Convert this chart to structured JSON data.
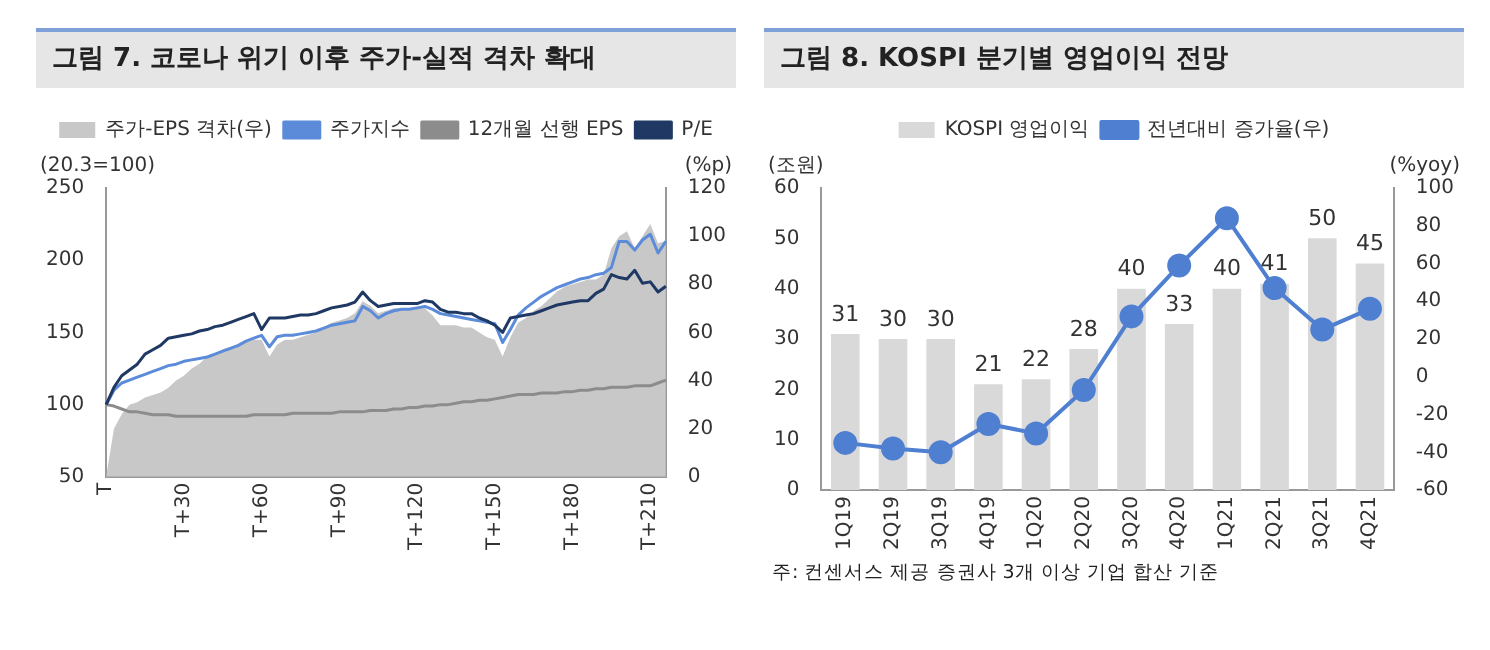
{
  "chart_data": [
    {
      "type": "line",
      "title": "그림 7. 코로나 위기 이후 주가-실적 격차 확대",
      "ylabel": "(20.3=100)",
      "y2label": "(%p)",
      "categories": [
        "T",
        null,
        null,
        null,
        null,
        null,
        null,
        null,
        null,
        null,
        "T+30",
        null,
        null,
        null,
        null,
        null,
        null,
        null,
        null,
        null,
        "T+60",
        null,
        null,
        null,
        null,
        null,
        null,
        null,
        null,
        null,
        "T+90",
        null,
        null,
        null,
        null,
        null,
        null,
        null,
        null,
        null,
        "T+120",
        null,
        null,
        null,
        null,
        null,
        null,
        null,
        null,
        null,
        "T+150",
        null,
        null,
        null,
        null,
        null,
        null,
        null,
        null,
        null,
        "T+180",
        null,
        null,
        null,
        null,
        null,
        null,
        null,
        null,
        null,
        "T+210",
        null,
        null
      ],
      "ylim": [
        50,
        250
      ],
      "yticks": [
        50,
        100,
        150,
        200,
        250
      ],
      "y2lim": [
        0,
        120
      ],
      "y2ticks": [
        0,
        20,
        40,
        60,
        80,
        100,
        120
      ],
      "grid": false,
      "legend": "top left",
      "marker": "none",
      "series": [
        {
          "name": "주가-EPS 격차(우)",
          "type": "area",
          "axis": "y2",
          "color": "#c8c8c8",
          "values": [
            0,
            20,
            26,
            30,
            31,
            33,
            34,
            35,
            37,
            40,
            42,
            45,
            47,
            50,
            51,
            53,
            54,
            55,
            56,
            57,
            57,
            50,
            55,
            57,
            57,
            58,
            59,
            60,
            62,
            64,
            65,
            66,
            68,
            73,
            71,
            68,
            69,
            70,
            70,
            70,
            70,
            70,
            67,
            63,
            63,
            63,
            62,
            62,
            60,
            58,
            57,
            50,
            58,
            64,
            66,
            69,
            71,
            74,
            77,
            79,
            80,
            81,
            82,
            82,
            84,
            95,
            100,
            102,
            95,
            100,
            105,
            97,
            98
          ]
        },
        {
          "name": "주가지수",
          "color": "#5b8bd9",
          "values": [
            100,
            110,
            115,
            117,
            119,
            121,
            123,
            125,
            127,
            128,
            130,
            131,
            132,
            133,
            135,
            137,
            139,
            141,
            144,
            146,
            148,
            140,
            147,
            148,
            148,
            149,
            150,
            151,
            153,
            155,
            156,
            157,
            158,
            168,
            165,
            160,
            163,
            165,
            166,
            166,
            167,
            168,
            166,
            163,
            162,
            161,
            160,
            159,
            158,
            157,
            156,
            143,
            152,
            162,
            167,
            171,
            175,
            178,
            181,
            183,
            185,
            187,
            188,
            190,
            191,
            195,
            213,
            213,
            207,
            214,
            218,
            205,
            213
          ]
        },
        {
          "name": "12개월 선행 EPS",
          "color": "#8c8c8c",
          "values": [
            100,
            99,
            97,
            95,
            95,
            94,
            93,
            93,
            93,
            92,
            92,
            92,
            92,
            92,
            92,
            92,
            92,
            92,
            92,
            93,
            93,
            93,
            93,
            93,
            94,
            94,
            94,
            94,
            94,
            94,
            95,
            95,
            95,
            95,
            96,
            96,
            96,
            97,
            97,
            98,
            98,
            99,
            99,
            100,
            100,
            101,
            102,
            102,
            103,
            103,
            104,
            105,
            106,
            107,
            107,
            107,
            108,
            108,
            108,
            109,
            109,
            110,
            110,
            111,
            111,
            112,
            112,
            112,
            113,
            113,
            113,
            115,
            117
          ]
        },
        {
          "name": "P/E",
          "color": "#1f3864",
          "values": [
            100,
            112,
            120,
            124,
            128,
            135,
            138,
            141,
            146,
            147,
            148,
            149,
            151,
            152,
            154,
            155,
            157,
            159,
            161,
            163,
            152,
            160,
            160,
            160,
            161,
            162,
            162,
            163,
            165,
            167,
            168,
            169,
            171,
            178,
            172,
            168,
            169,
            170,
            170,
            170,
            170,
            172,
            171,
            166,
            164,
            164,
            163,
            163,
            160,
            158,
            155,
            150,
            160,
            161,
            162,
            163,
            165,
            167,
            169,
            170,
            171,
            172,
            172,
            177,
            180,
            190,
            188,
            187,
            193,
            184,
            185,
            178,
            182
          ]
        }
      ]
    },
    {
      "type": "bar",
      "title": "그림 8. KOSPI 분기별 영업이익 전망",
      "ylabel": "(조원)",
      "y2label": "(%yoy)",
      "categories": [
        "1Q19",
        "2Q19",
        "3Q19",
        "4Q19",
        "1Q20",
        "2Q20",
        "3Q20",
        "4Q20",
        "1Q21",
        "2Q21",
        "3Q21",
        "4Q21"
      ],
      "ylim": [
        0,
        60
      ],
      "yticks": [
        0,
        10,
        20,
        30,
        40,
        50,
        60
      ],
      "y2lim": [
        -60,
        100
      ],
      "y2ticks": [
        -60,
        -40,
        -20,
        0,
        20,
        40,
        60,
        80,
        100
      ],
      "grid": false,
      "legend": "top left",
      "annotations": [
        "주: 컨센서스 제공 증권사 3개 이상 기업 합산 기준"
      ],
      "series": [
        {
          "name": "KOSPI 영업이익",
          "color": "#d9d9d9",
          "values": [
            31,
            30,
            30,
            21,
            22,
            28,
            40,
            33,
            40,
            41,
            50,
            45
          ],
          "value_labels": [
            "31",
            "30",
            "30",
            "21",
            "22",
            "28",
            "40",
            "33",
            "40",
            "41",
            "50",
            "45"
          ]
        },
        {
          "name": "전년대비 증가율(우)",
          "type": "line",
          "axis": "y2",
          "marker": "circle",
          "color": "#4f7fd0",
          "values": [
            -35,
            -38,
            -40,
            -25,
            -30,
            -7,
            32,
            59,
            84,
            47,
            25,
            36
          ]
        }
      ]
    }
  ]
}
